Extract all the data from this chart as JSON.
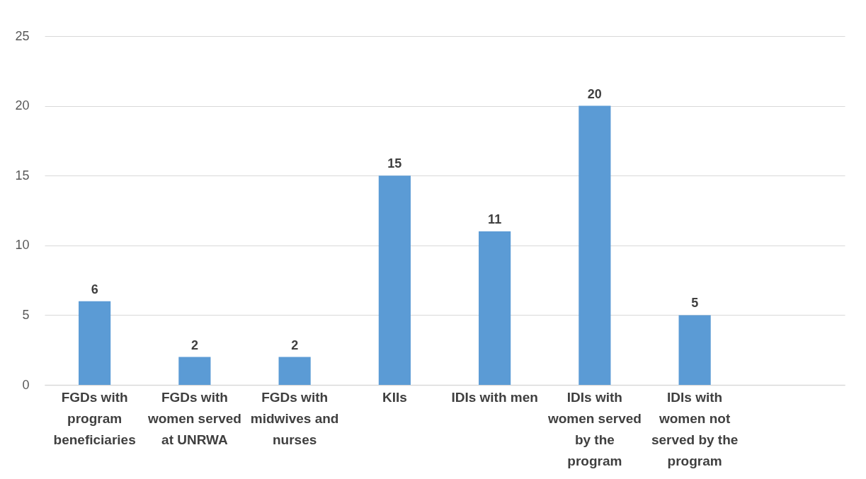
{
  "chart_data": {
    "type": "bar",
    "categories": [
      "FGDs with program beneficiaries",
      "FGDs with women served at UNRWA",
      "FGDs with midwives and nurses",
      "KIIs",
      "IDIs with men",
      "IDIs with women served by the program",
      "IDIs with women not served by the program",
      null
    ],
    "values": [
      6,
      2,
      2,
      15,
      11,
      20,
      5,
      null
    ],
    "color": "#5b9bd5",
    "ylim": [
      0,
      25
    ],
    "yticks": [
      0,
      5,
      10,
      15,
      20,
      25
    ],
    "grid": "y",
    "data_labels": true
  }
}
